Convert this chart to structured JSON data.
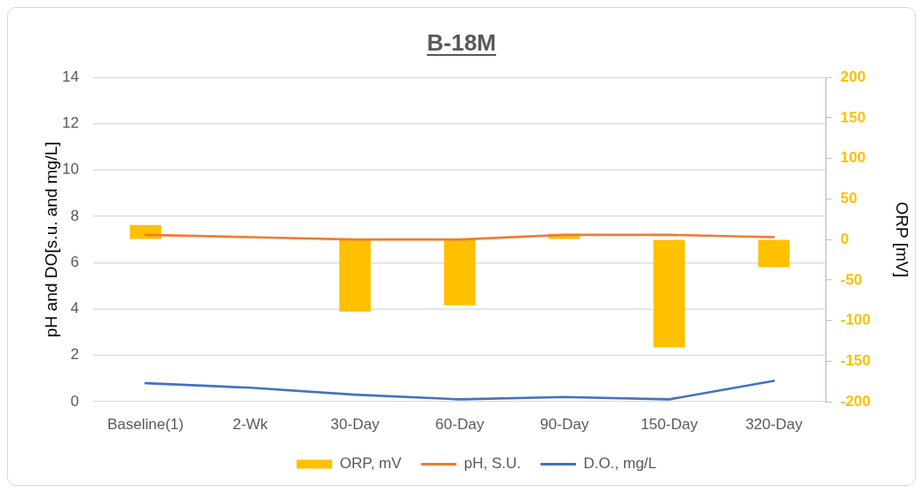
{
  "chart_data": {
    "type": "bar",
    "title": "B-18M",
    "ylabel": "pH and DO[s.u. and mg/L]",
    "y2label": "ORP [mV]",
    "categories": [
      "Baseline(1)",
      "2-Wk",
      "30-Day",
      "60-Day",
      "90-Day",
      "150-Day",
      "320-Day"
    ],
    "series": [
      {
        "name": "ORP, mV",
        "axis": "y2",
        "color": "#ffc000",
        "values": [
          18,
          null,
          -89,
          -81,
          7,
          -133,
          -34
        ]
      },
      {
        "name": "pH, S.U.",
        "type": "line",
        "color": "#ed7d31",
        "values": [
          7.2,
          7.1,
          7.0,
          7.0,
          7.2,
          7.2,
          7.1
        ]
      },
      {
        "name": "D.O., mg/L",
        "type": "line",
        "color": "#4472c4",
        "values": [
          0.8,
          0.6,
          0.3,
          0.1,
          0.2,
          0.1,
          0.9
        ]
      }
    ],
    "ylim": [
      0,
      14
    ],
    "yticks": [
      0,
      2,
      4,
      6,
      8,
      10,
      12,
      14
    ],
    "y2lim": [
      -200,
      200
    ],
    "y2ticks": [
      -200,
      -150,
      -100,
      -50,
      0,
      50,
      100,
      150,
      200
    ],
    "grid": "y",
    "legend": "bottom",
    "marker": "none"
  }
}
